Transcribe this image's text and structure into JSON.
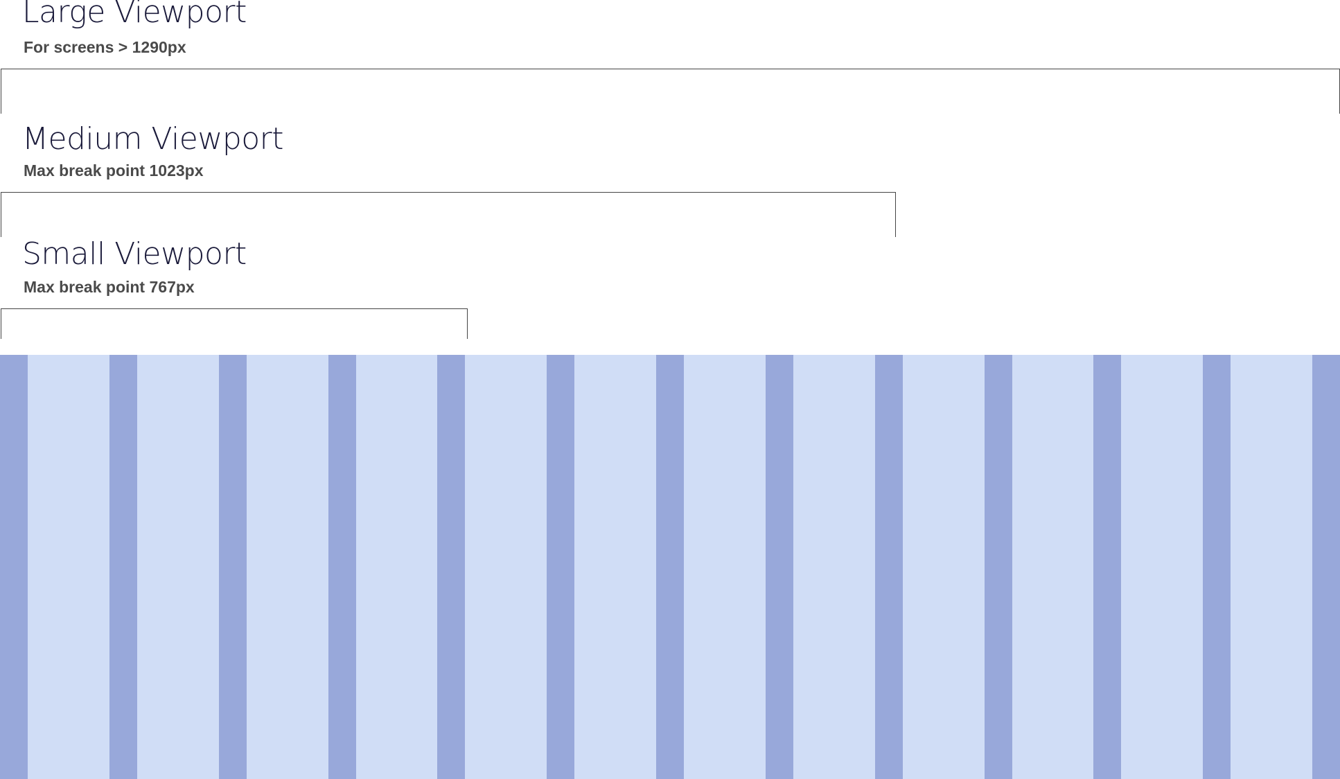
{
  "viewports": {
    "large": {
      "title": "Large Viewport",
      "subtitle": "For screens > 1290px"
    },
    "medium": {
      "title": "Medium Viewport",
      "subtitle": "Max break point 1023px"
    },
    "small": {
      "title": "Small Viewport",
      "subtitle": "Max break point 767px"
    }
  },
  "grid": {
    "columns": 12,
    "column_color": "#d0ddf6",
    "gutter_color": "#98a8da",
    "line_color": "#444444"
  }
}
